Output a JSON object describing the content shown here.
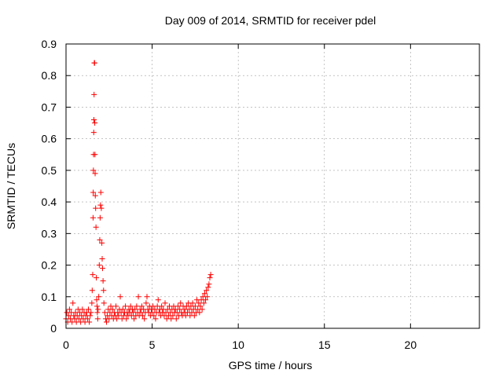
{
  "chart_data": {
    "type": "scatter",
    "title": "Day 009 of 2014, SRMTID for receiver pdel",
    "xlabel": "GPS time / hours",
    "ylabel": "SRMTID / TECUs",
    "xlim": [
      0,
      24
    ],
    "ylim": [
      0,
      0.9
    ],
    "xticks": [
      0,
      5,
      10,
      15,
      20
    ],
    "xtick_labels": [
      "0",
      "5",
      "10",
      "15",
      "20"
    ],
    "yticks": [
      0,
      0.1,
      0.2,
      0.3,
      0.4,
      0.5,
      0.6,
      0.7,
      0.8,
      0.9
    ],
    "ytick_labels": [
      "0",
      "0.1",
      "0.2",
      "0.3",
      "0.4",
      "0.5",
      "0.6",
      "0.7",
      "0.8",
      "0.9"
    ],
    "grid": true,
    "marker": "+",
    "color": "#ff0000",
    "series": [
      {
        "points": [
          [
            0.0,
            0.03
          ],
          [
            0.05,
            0.05
          ],
          [
            0.1,
            0.02
          ],
          [
            0.15,
            0.04
          ],
          [
            0.2,
            0.06
          ],
          [
            0.25,
            0.03
          ],
          [
            0.3,
            0.05
          ],
          [
            0.35,
            0.02
          ],
          [
            0.4,
            0.08
          ],
          [
            0.45,
            0.04
          ],
          [
            0.5,
            0.03
          ],
          [
            0.55,
            0.05
          ],
          [
            0.6,
            0.02
          ],
          [
            0.65,
            0.04
          ],
          [
            0.7,
            0.06
          ],
          [
            0.75,
            0.03
          ],
          [
            0.8,
            0.05
          ],
          [
            0.85,
            0.02
          ],
          [
            0.9,
            0.04
          ],
          [
            0.95,
            0.06
          ],
          [
            1.0,
            0.03
          ],
          [
            1.05,
            0.05
          ],
          [
            1.1,
            0.02
          ],
          [
            1.15,
            0.04
          ],
          [
            1.2,
            0.05
          ],
          [
            1.25,
            0.03
          ],
          [
            1.3,
            0.06
          ],
          [
            1.35,
            0.02
          ],
          [
            1.4,
            0.04
          ],
          [
            1.45,
            0.05
          ],
          [
            1.5,
            0.08
          ],
          [
            1.52,
            0.12
          ],
          [
            1.55,
            0.17
          ],
          [
            1.57,
            0.35
          ],
          [
            1.58,
            0.43
          ],
          [
            1.59,
            0.5
          ],
          [
            1.6,
            0.55
          ],
          [
            1.61,
            0.62
          ],
          [
            1.62,
            0.66
          ],
          [
            1.63,
            0.74
          ],
          [
            1.64,
            0.84
          ],
          [
            1.66,
            0.84
          ],
          [
            1.67,
            0.65
          ],
          [
            1.68,
            0.55
          ],
          [
            1.69,
            0.49
          ],
          [
            1.7,
            0.42
          ],
          [
            1.72,
            0.38
          ],
          [
            1.74,
            0.32
          ],
          [
            1.76,
            0.16
          ],
          [
            1.78,
            0.09
          ],
          [
            1.8,
            0.07
          ],
          [
            1.82,
            0.05
          ],
          [
            1.84,
            0.03
          ],
          [
            1.86,
            0.06
          ],
          [
            1.9,
            0.1
          ],
          [
            1.93,
            0.2
          ],
          [
            1.96,
            0.28
          ],
          [
            1.98,
            0.35
          ],
          [
            2.0,
            0.39
          ],
          [
            2.02,
            0.43
          ],
          [
            2.05,
            0.38
          ],
          [
            2.08,
            0.27
          ],
          [
            2.1,
            0.22
          ],
          [
            2.12,
            0.19
          ],
          [
            2.15,
            0.15
          ],
          [
            2.18,
            0.12
          ],
          [
            2.2,
            0.08
          ],
          [
            2.25,
            0.05
          ],
          [
            2.3,
            0.03
          ],
          [
            2.35,
            0.02
          ],
          [
            2.4,
            0.04
          ],
          [
            2.45,
            0.06
          ],
          [
            2.5,
            0.03
          ],
          [
            2.55,
            0.05
          ],
          [
            2.6,
            0.07
          ],
          [
            2.65,
            0.04
          ],
          [
            2.7,
            0.06
          ],
          [
            2.75,
            0.03
          ],
          [
            2.8,
            0.05
          ],
          [
            2.85,
            0.04
          ],
          [
            2.9,
            0.07
          ],
          [
            2.95,
            0.03
          ],
          [
            3.0,
            0.05
          ],
          [
            3.05,
            0.04
          ],
          [
            3.1,
            0.06
          ],
          [
            3.15,
            0.1
          ],
          [
            3.2,
            0.05
          ],
          [
            3.25,
            0.03
          ],
          [
            3.3,
            0.06
          ],
          [
            3.35,
            0.04
          ],
          [
            3.4,
            0.05
          ],
          [
            3.45,
            0.07
          ],
          [
            3.5,
            0.03
          ],
          [
            3.55,
            0.05
          ],
          [
            3.6,
            0.04
          ],
          [
            3.65,
            0.06
          ],
          [
            3.7,
            0.05
          ],
          [
            3.75,
            0.07
          ],
          [
            3.8,
            0.04
          ],
          [
            3.85,
            0.06
          ],
          [
            3.9,
            0.05
          ],
          [
            3.95,
            0.03
          ],
          [
            4.0,
            0.06
          ],
          [
            4.05,
            0.04
          ],
          [
            4.1,
            0.07
          ],
          [
            4.15,
            0.05
          ],
          [
            4.2,
            0.1
          ],
          [
            4.25,
            0.04
          ],
          [
            4.3,
            0.06
          ],
          [
            4.35,
            0.05
          ],
          [
            4.4,
            0.07
          ],
          [
            4.45,
            0.04
          ],
          [
            4.5,
            0.06
          ],
          [
            4.55,
            0.03
          ],
          [
            4.6,
            0.05
          ],
          [
            4.65,
            0.08
          ],
          [
            4.7,
            0.1
          ],
          [
            4.75,
            0.06
          ],
          [
            4.8,
            0.05
          ],
          [
            4.85,
            0.07
          ],
          [
            4.9,
            0.04
          ],
          [
            4.95,
            0.06
          ],
          [
            5.0,
            0.05
          ],
          [
            5.05,
            0.07
          ],
          [
            5.1,
            0.04
          ],
          [
            5.15,
            0.06
          ],
          [
            5.2,
            0.03
          ],
          [
            5.25,
            0.05
          ],
          [
            5.3,
            0.07
          ],
          [
            5.35,
            0.09
          ],
          [
            5.4,
            0.05
          ],
          [
            5.45,
            0.06
          ],
          [
            5.5,
            0.04
          ],
          [
            5.55,
            0.07
          ],
          [
            5.6,
            0.05
          ],
          [
            5.65,
            0.06
          ],
          [
            5.7,
            0.04
          ],
          [
            5.75,
            0.08
          ],
          [
            5.8,
            0.05
          ],
          [
            5.85,
            0.03
          ],
          [
            5.9,
            0.06
          ],
          [
            5.95,
            0.04
          ],
          [
            6.0,
            0.07
          ],
          [
            6.05,
            0.05
          ],
          [
            6.1,
            0.03
          ],
          [
            6.15,
            0.06
          ],
          [
            6.2,
            0.04
          ],
          [
            6.25,
            0.07
          ],
          [
            6.3,
            0.05
          ],
          [
            6.35,
            0.06
          ],
          [
            6.4,
            0.03
          ],
          [
            6.45,
            0.05
          ],
          [
            6.5,
            0.07
          ],
          [
            6.55,
            0.04
          ],
          [
            6.6,
            0.06
          ],
          [
            6.65,
            0.08
          ],
          [
            6.7,
            0.05
          ],
          [
            6.75,
            0.04
          ],
          [
            6.8,
            0.07
          ],
          [
            6.85,
            0.05
          ],
          [
            6.9,
            0.06
          ],
          [
            6.95,
            0.04
          ],
          [
            7.0,
            0.07
          ],
          [
            7.05,
            0.05
          ],
          [
            7.1,
            0.08
          ],
          [
            7.15,
            0.06
          ],
          [
            7.2,
            0.04
          ],
          [
            7.25,
            0.07
          ],
          [
            7.3,
            0.05
          ],
          [
            7.35,
            0.08
          ],
          [
            7.4,
            0.06
          ],
          [
            7.45,
            0.04
          ],
          [
            7.5,
            0.07
          ],
          [
            7.55,
            0.05
          ],
          [
            7.6,
            0.09
          ],
          [
            7.65,
            0.06
          ],
          [
            7.7,
            0.08
          ],
          [
            7.75,
            0.05
          ],
          [
            7.8,
            0.07
          ],
          [
            7.85,
            0.09
          ],
          [
            7.9,
            0.06
          ],
          [
            7.95,
            0.1
          ],
          [
            8.0,
            0.08
          ],
          [
            8.05,
            0.11
          ],
          [
            8.1,
            0.09
          ],
          [
            8.15,
            0.12
          ],
          [
            8.2,
            0.1
          ],
          [
            8.25,
            0.13
          ],
          [
            8.3,
            0.14
          ],
          [
            8.35,
            0.16
          ],
          [
            8.4,
            0.17
          ]
        ]
      }
    ]
  }
}
